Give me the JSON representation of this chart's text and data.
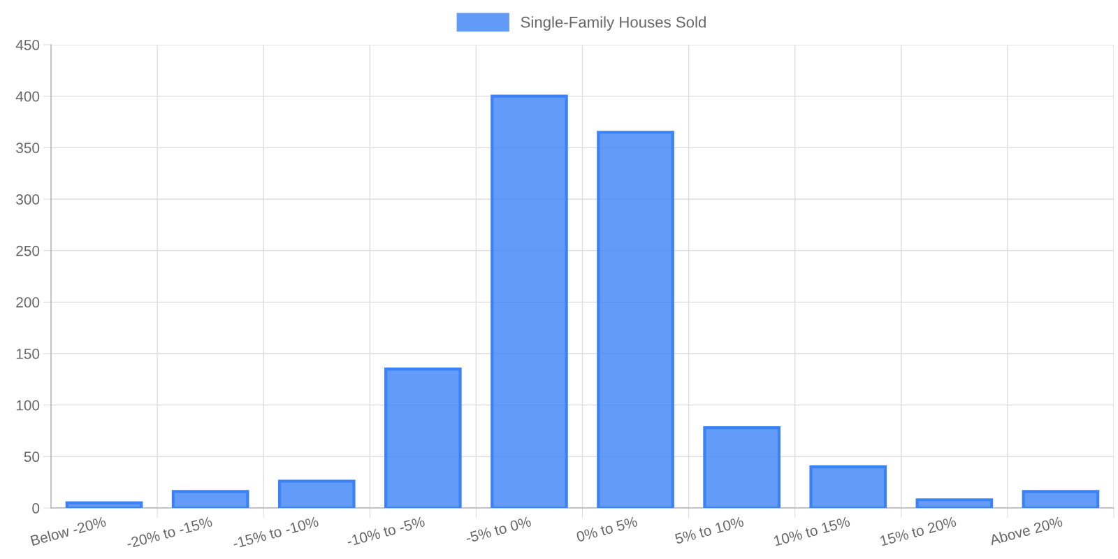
{
  "chart_data": {
    "type": "bar",
    "categories": [
      "Below -20%",
      "-20% to -15%",
      "-15% to -10%",
      "-10% to -5%",
      "-5% to 0%",
      "0% to 5%",
      "5% to 10%",
      "10% to 15%",
      "15% to 20%",
      "Above 20%"
    ],
    "series": [
      {
        "name": "Single-Family Houses Sold",
        "color": "#3b82f6",
        "values": [
          5,
          16,
          26,
          135,
          400,
          365,
          78,
          40,
          8,
          16
        ]
      }
    ],
    "ylim": [
      0,
      450
    ],
    "yticks": [
      0,
      50,
      100,
      150,
      200,
      250,
      300,
      350,
      400,
      450
    ],
    "grid": true,
    "legend": "top"
  }
}
